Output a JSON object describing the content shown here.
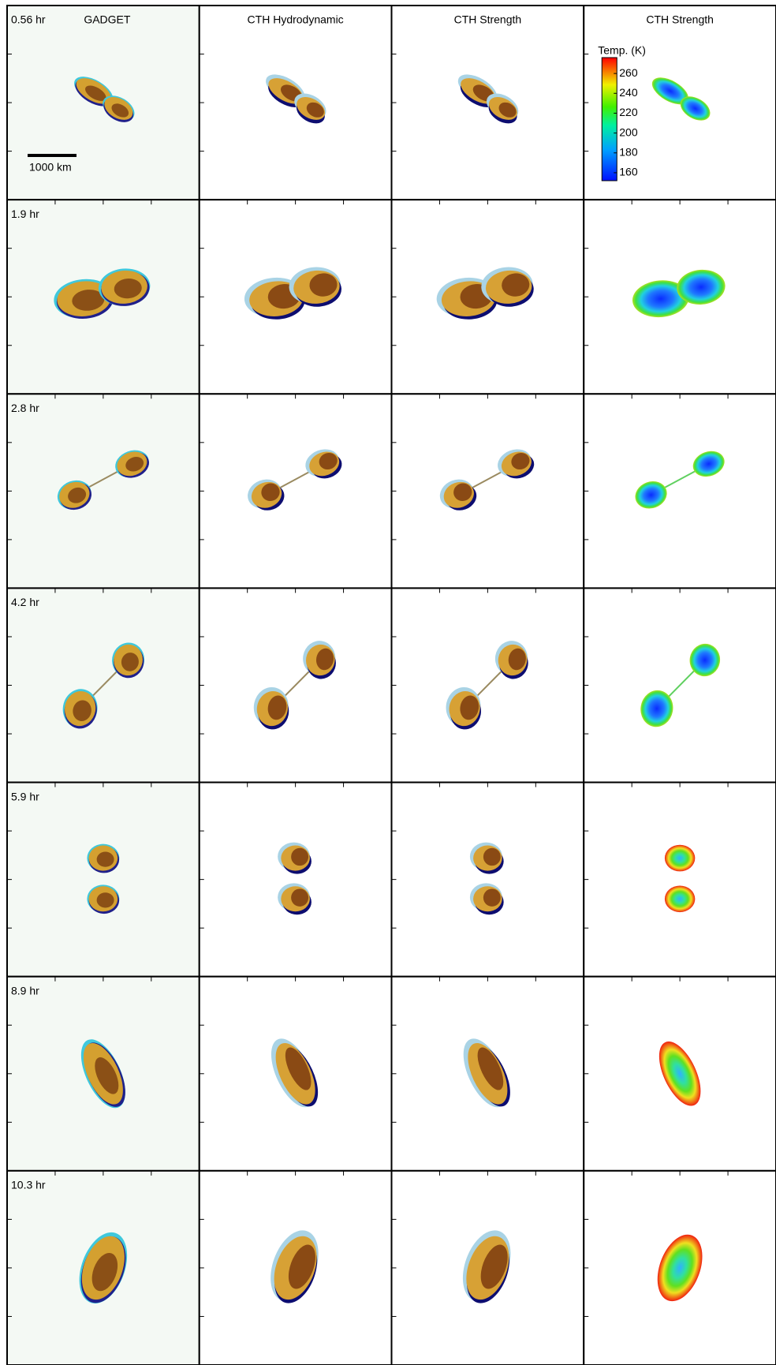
{
  "columns": [
    "GADGET",
    "CTH Hydrodynamic",
    "CTH Strength",
    "CTH Strength"
  ],
  "rows": [
    "0.56 hr",
    "1.9 hr",
    "2.8 hr",
    "4.2 hr",
    "5.9 hr",
    "8.9 hr",
    "10.3 hr"
  ],
  "scale_bar": {
    "label": "1000 km"
  },
  "colorbar": {
    "title": "Temp. (K)",
    "lim": [
      152,
      276
    ],
    "ticks": [
      160,
      180,
      200,
      220,
      240,
      260
    ]
  }
}
